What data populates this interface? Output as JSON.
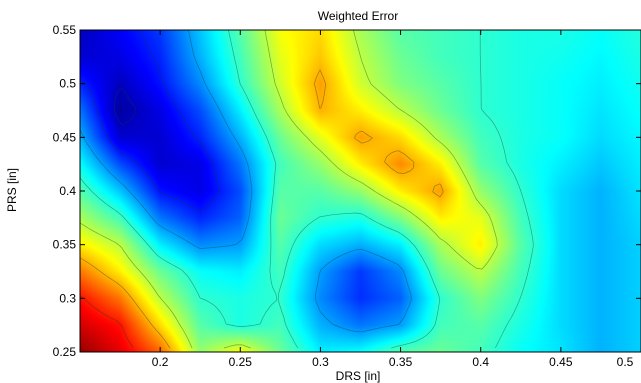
{
  "chart_data": {
    "type": "heatmap",
    "title": "Weighted Error",
    "xlabel": "DRS [in]",
    "ylabel": "PRS [in]",
    "xlim": [
      0.15,
      0.5
    ],
    "ylim": [
      0.25,
      0.55
    ],
    "x_ticks": [
      0.2,
      0.25,
      0.3,
      0.35,
      0.4,
      0.45,
      0.5
    ],
    "x_tick_labels": [
      "0.2",
      "0.25",
      "0.3",
      "0.35",
      "0.4",
      "0.45",
      "0.5"
    ],
    "y_ticks": [
      0.25,
      0.3,
      0.35,
      0.4,
      0.45,
      0.5,
      0.55
    ],
    "y_tick_labels": [
      "0.25",
      "0.3",
      "0.35",
      "0.4",
      "0.45",
      "0.5",
      "0.55"
    ],
    "colormap": "jet",
    "grid": false,
    "x": [
      0.15,
      0.175,
      0.2,
      0.225,
      0.25,
      0.275,
      0.3,
      0.325,
      0.35,
      0.375,
      0.4,
      0.425,
      0.45,
      0.475,
      0.5
    ],
    "y": [
      0.25,
      0.275,
      0.3,
      0.325,
      0.35,
      0.375,
      0.4,
      0.425,
      0.45,
      0.475,
      0.5,
      0.525,
      0.55
    ],
    "z": [
      [
        0.98,
        0.9,
        0.78,
        0.52,
        0.62,
        0.48,
        0.36,
        0.38,
        0.46,
        0.48,
        0.44,
        0.38,
        0.35,
        0.3,
        0.33
      ],
      [
        0.92,
        0.86,
        0.66,
        0.46,
        0.4,
        0.44,
        0.3,
        0.24,
        0.28,
        0.44,
        0.46,
        0.4,
        0.34,
        0.3,
        0.33
      ],
      [
        0.86,
        0.76,
        0.56,
        0.42,
        0.4,
        0.42,
        0.26,
        0.17,
        0.22,
        0.42,
        0.5,
        0.42,
        0.34,
        0.3,
        0.33
      ],
      [
        0.76,
        0.64,
        0.48,
        0.38,
        0.36,
        0.44,
        0.28,
        0.18,
        0.26,
        0.48,
        0.56,
        0.44,
        0.34,
        0.3,
        0.33
      ],
      [
        0.64,
        0.56,
        0.36,
        0.26,
        0.28,
        0.46,
        0.34,
        0.3,
        0.36,
        0.54,
        0.64,
        0.46,
        0.34,
        0.3,
        0.33
      ],
      [
        0.54,
        0.44,
        0.24,
        0.16,
        0.22,
        0.48,
        0.42,
        0.4,
        0.5,
        0.64,
        0.6,
        0.44,
        0.34,
        0.3,
        0.34
      ],
      [
        0.46,
        0.32,
        0.14,
        0.1,
        0.2,
        0.46,
        0.46,
        0.52,
        0.64,
        0.72,
        0.52,
        0.42,
        0.34,
        0.3,
        0.35
      ],
      [
        0.38,
        0.2,
        0.08,
        0.1,
        0.24,
        0.44,
        0.52,
        0.64,
        0.74,
        0.64,
        0.46,
        0.4,
        0.36,
        0.32,
        0.36
      ],
      [
        0.3,
        0.08,
        0.08,
        0.16,
        0.3,
        0.48,
        0.6,
        0.72,
        0.66,
        0.54,
        0.44,
        0.4,
        0.38,
        0.34,
        0.37
      ],
      [
        0.24,
        0.03,
        0.1,
        0.2,
        0.36,
        0.54,
        0.7,
        0.64,
        0.56,
        0.48,
        0.42,
        0.4,
        0.38,
        0.35,
        0.38
      ],
      [
        0.16,
        0.06,
        0.14,
        0.26,
        0.42,
        0.58,
        0.72,
        0.58,
        0.5,
        0.46,
        0.42,
        0.4,
        0.38,
        0.36,
        0.39
      ],
      [
        0.08,
        0.1,
        0.16,
        0.3,
        0.44,
        0.6,
        0.68,
        0.56,
        0.48,
        0.44,
        0.42,
        0.4,
        0.39,
        0.37,
        0.4
      ],
      [
        0.06,
        0.12,
        0.18,
        0.32,
        0.46,
        0.62,
        0.66,
        0.54,
        0.46,
        0.44,
        0.42,
        0.4,
        0.4,
        0.38,
        0.41
      ]
    ]
  }
}
